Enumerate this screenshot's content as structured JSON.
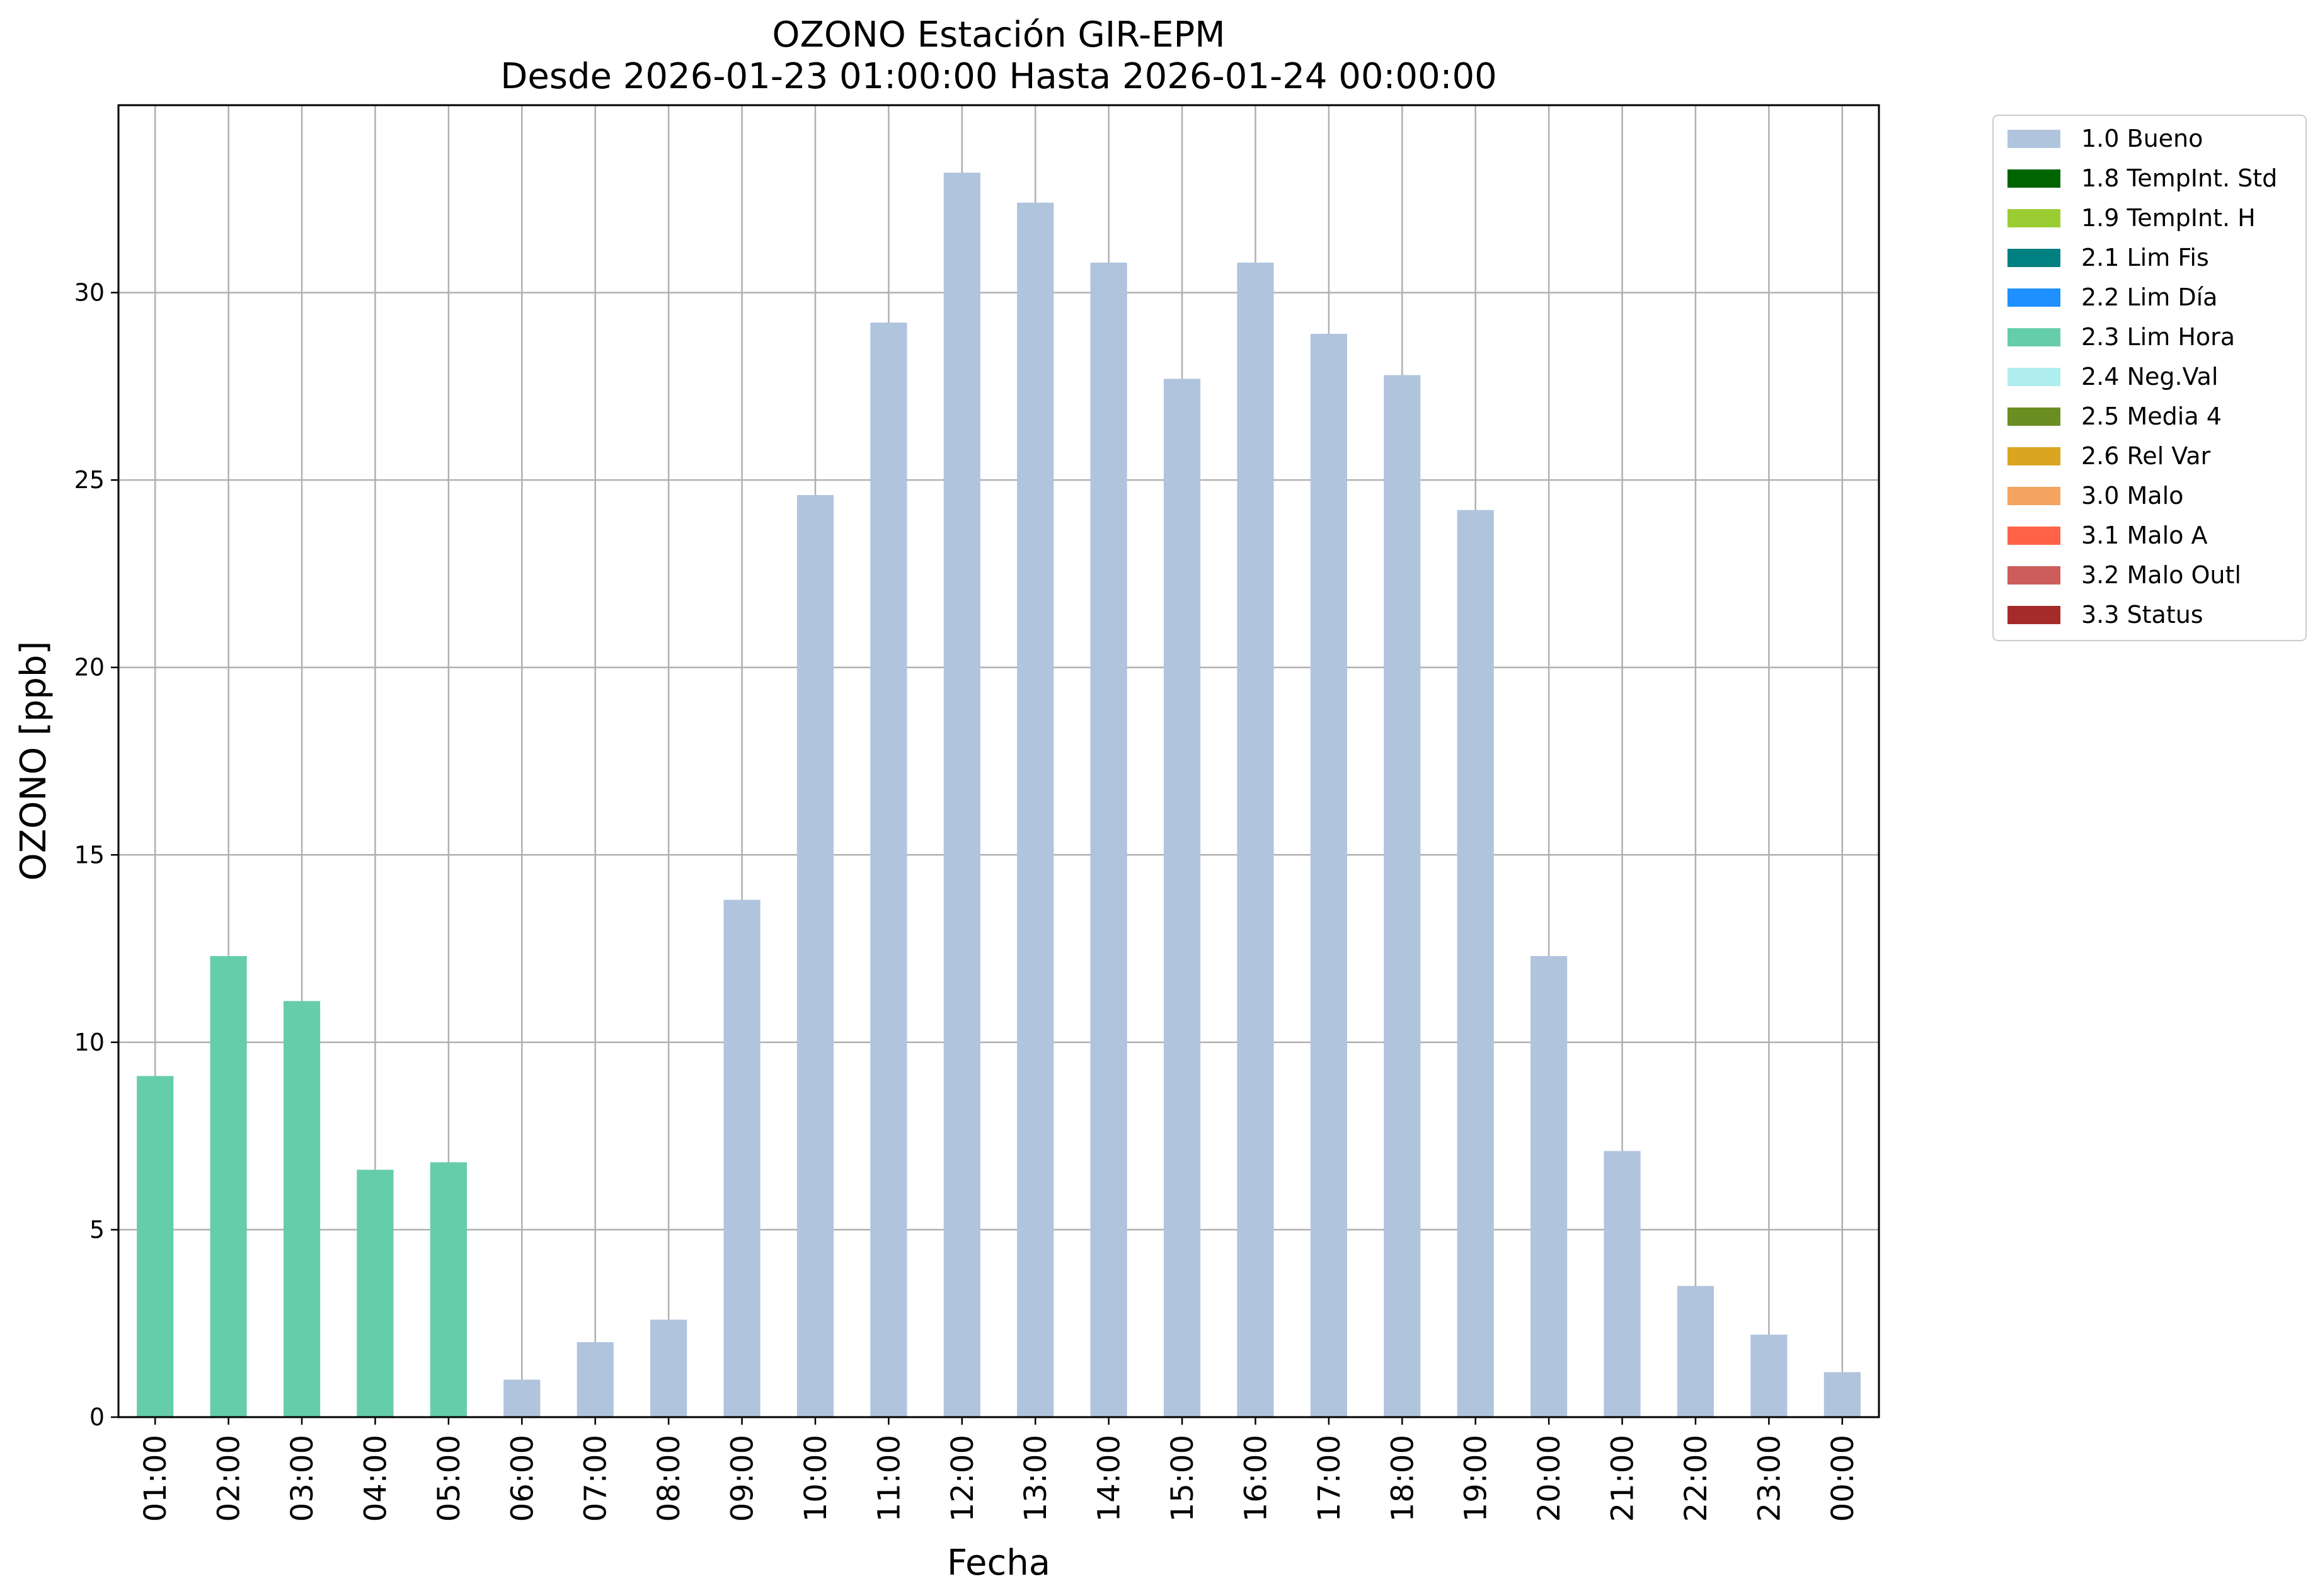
{
  "chart_data": {
    "type": "bar",
    "title": "OZONO Estación GIR-EPM",
    "subtitle": "Desde 2026-01-23 01:00:00 Hasta 2026-01-24 00:00:00",
    "xlabel": "Fecha",
    "ylabel": "OZONO [ppb]",
    "ylim": [
      0,
      35
    ],
    "yticks": [
      "0",
      "5",
      "10",
      "15",
      "20",
      "25",
      "30"
    ],
    "grid": true,
    "legend_position": "outside-right",
    "categories": [
      "01:00",
      "02:00",
      "03:00",
      "04:00",
      "05:00",
      "06:00",
      "07:00",
      "08:00",
      "09:00",
      "10:00",
      "11:00",
      "12:00",
      "13:00",
      "14:00",
      "15:00",
      "16:00",
      "17:00",
      "18:00",
      "19:00",
      "20:00",
      "21:00",
      "22:00",
      "23:00",
      "00:00"
    ],
    "values": [
      9.1,
      12.3,
      11.1,
      6.6,
      6.8,
      1.0,
      2.0,
      2.6,
      13.8,
      24.6,
      29.2,
      33.2,
      32.4,
      30.8,
      27.7,
      30.8,
      28.9,
      27.8,
      24.2,
      12.3,
      7.1,
      3.5,
      2.2,
      1.2
    ],
    "flags": [
      "2.3 Lim Hora",
      "2.3 Lim Hora",
      "2.3 Lim Hora",
      "2.3 Lim Hora",
      "2.3 Lim Hora",
      "1.0 Bueno",
      "1.0 Bueno",
      "1.0 Bueno",
      "1.0 Bueno",
      "1.0 Bueno",
      "1.0 Bueno",
      "1.0 Bueno",
      "1.0 Bueno",
      "1.0 Bueno",
      "1.0 Bueno",
      "1.0 Bueno",
      "1.0 Bueno",
      "1.0 Bueno",
      "1.0 Bueno",
      "1.0 Bueno",
      "1.0 Bueno",
      "1.0 Bueno",
      "1.0 Bueno",
      "1.0 Bueno"
    ],
    "legend": [
      {
        "name": "1.0 Bueno",
        "color": "#b0c4de"
      },
      {
        "name": "1.8 TempInt. Std",
        "color": "#006400"
      },
      {
        "name": "1.9 TempInt. H",
        "color": "#9acd32"
      },
      {
        "name": "2.1 Lim Fis",
        "color": "#008080"
      },
      {
        "name": "2.2 Lim Día",
        "color": "#1e90ff"
      },
      {
        "name": "2.3 Lim Hora",
        "color": "#66cdaa"
      },
      {
        "name": "2.4 Neg.Val",
        "color": "#afeeee"
      },
      {
        "name": "2.5 Media 4",
        "color": "#6b8e23"
      },
      {
        "name": "2.6 Rel Var",
        "color": "#daa520"
      },
      {
        "name": "3.0 Malo",
        "color": "#f4a460"
      },
      {
        "name": "3.1 Malo A",
        "color": "#ff6347"
      },
      {
        "name": "3.2 Malo Outl",
        "color": "#cd5c5c"
      },
      {
        "name": "3.3 Status",
        "color": "#a52a2a"
      }
    ]
  }
}
